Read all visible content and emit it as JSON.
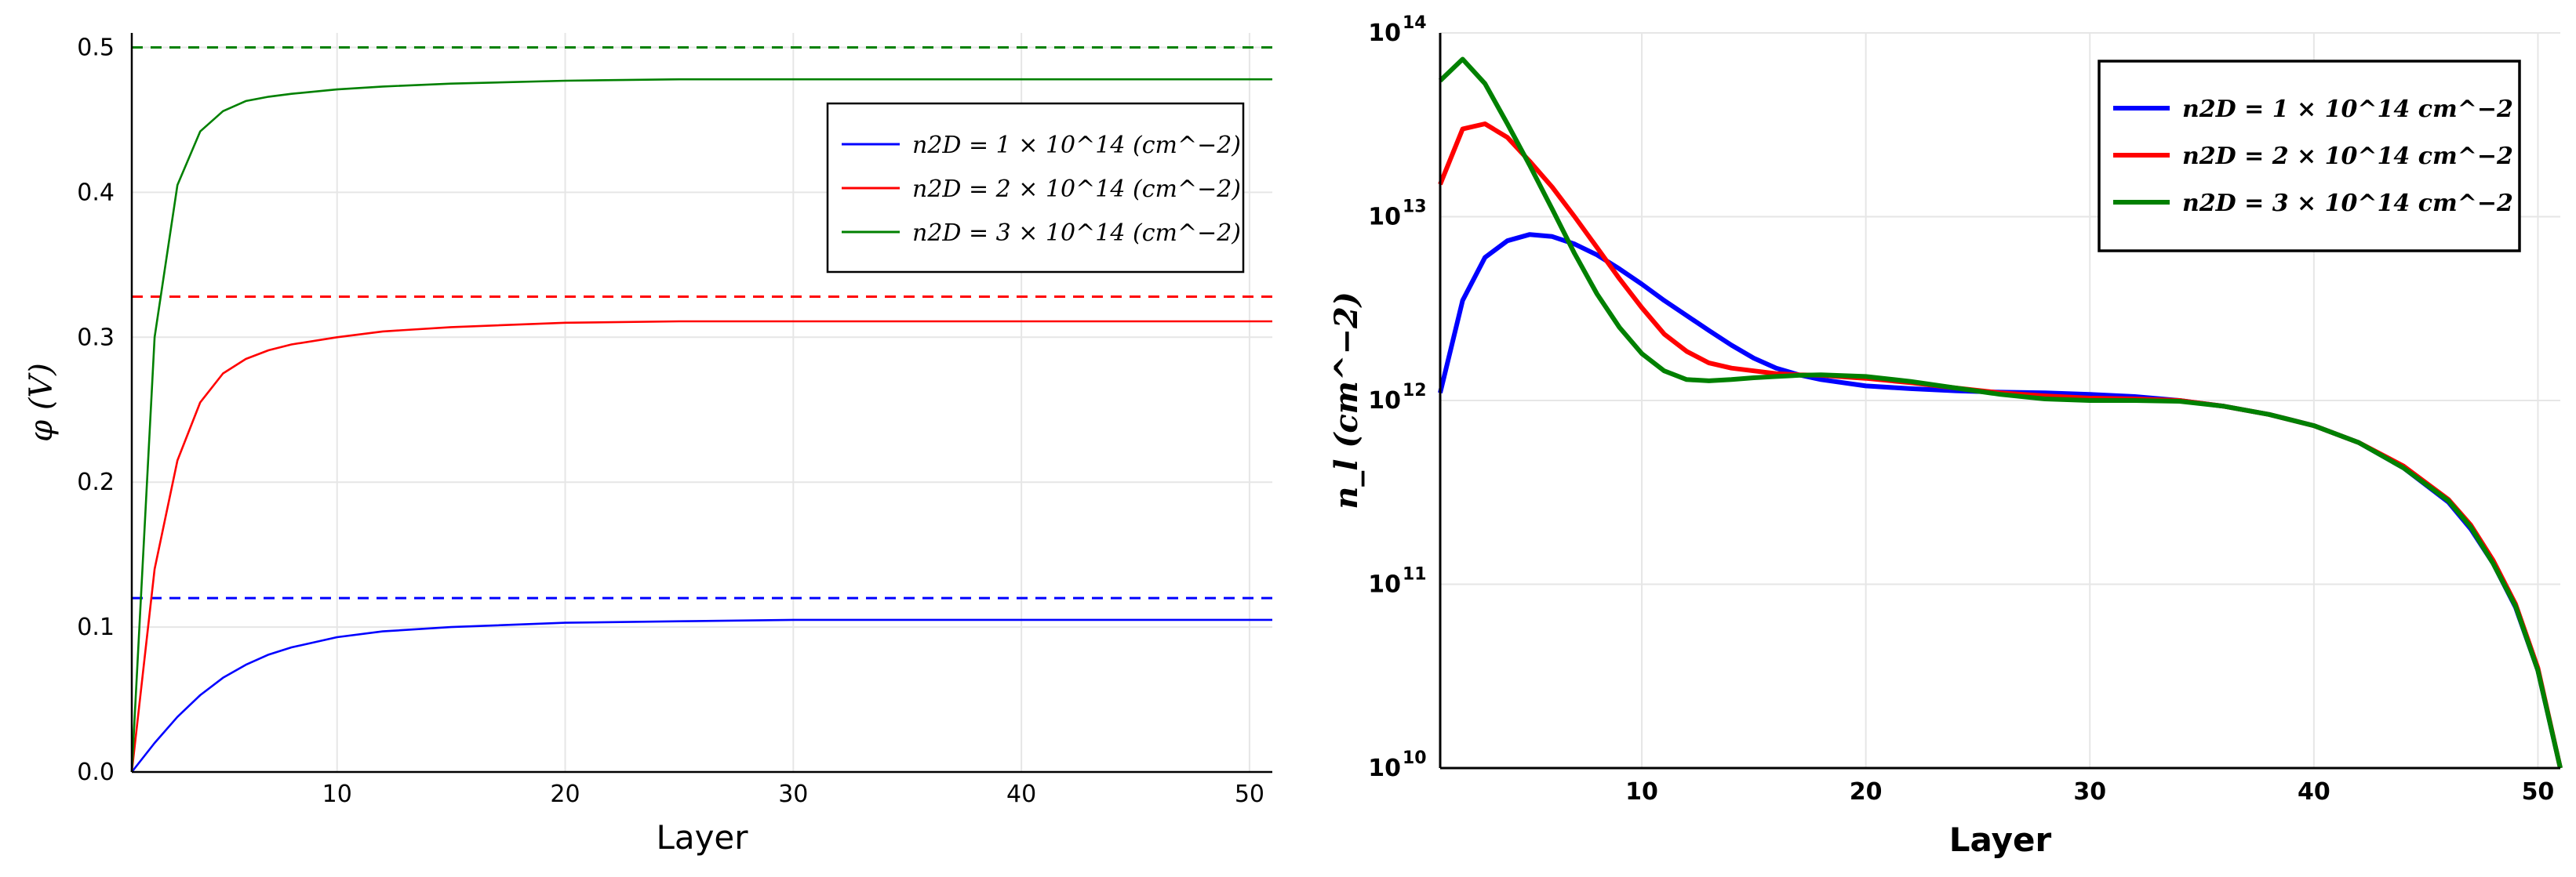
{
  "chart_data": [
    {
      "type": "line",
      "xlabel": "Layer",
      "ylabel": "φ (V)",
      "xlim": [
        1,
        51
      ],
      "ylim": [
        0,
        0.51
      ],
      "xticks": [
        10,
        20,
        30,
        40,
        50
      ],
      "yticks": [
        0.0,
        0.1,
        0.2,
        0.3,
        0.4,
        0.5
      ],
      "ytick_labels": [
        "0.0",
        "0.1",
        "0.2",
        "0.3",
        "0.4",
        "0.5"
      ],
      "grid": true,
      "legend_position": "top-right",
      "series": [
        {
          "name": "n2D = 1 × 10^14 (cm^−2)",
          "color": "#0000ff",
          "x": [
            1,
            2,
            3,
            4,
            5,
            6,
            7,
            8,
            10,
            12,
            15,
            20,
            25,
            30,
            40,
            51
          ],
          "values": [
            0.0,
            0.02,
            0.038,
            0.053,
            0.065,
            0.074,
            0.081,
            0.086,
            0.093,
            0.097,
            0.1,
            0.103,
            0.104,
            0.105,
            0.105,
            0.105
          ]
        },
        {
          "name": "n2D = 2 × 10^14 (cm^−2)",
          "color": "#ff0000",
          "x": [
            1,
            2,
            3,
            4,
            5,
            6,
            7,
            8,
            10,
            12,
            15,
            20,
            25,
            30,
            40,
            51
          ],
          "values": [
            0.0,
            0.14,
            0.215,
            0.255,
            0.275,
            0.285,
            0.291,
            0.295,
            0.3,
            0.304,
            0.307,
            0.31,
            0.311,
            0.311,
            0.311,
            0.311
          ]
        },
        {
          "name": "n2D = 3 × 10^14 (cm^−2)",
          "color": "#008000",
          "x": [
            1,
            2,
            3,
            4,
            5,
            6,
            7,
            8,
            10,
            12,
            15,
            20,
            25,
            30,
            40,
            51
          ],
          "values": [
            0.0,
            0.3,
            0.405,
            0.442,
            0.456,
            0.463,
            0.466,
            0.468,
            0.471,
            0.473,
            0.475,
            0.477,
            0.478,
            0.478,
            0.478,
            0.478
          ]
        }
      ],
      "reference_lines": [
        {
          "y": 0.12,
          "color": "#0000ff",
          "style": "dashed"
        },
        {
          "y": 0.328,
          "color": "#ff0000",
          "style": "dashed"
        },
        {
          "y": 0.5,
          "color": "#008000",
          "style": "dashed"
        }
      ]
    },
    {
      "type": "line",
      "xlabel": "Layer",
      "ylabel": "n_l (cm^−2)",
      "xlim": [
        1,
        51
      ],
      "ylim": [
        10000000000.0,
        100000000000000.0
      ],
      "yscale": "log",
      "xticks": [
        10,
        20,
        30,
        40,
        50
      ],
      "yticks": [
        10,
        11,
        12,
        13,
        14
      ],
      "ytick_bases": [
        "10",
        "10",
        "10",
        "10",
        "10"
      ],
      "ytick_exponents": [
        "10",
        "11",
        "12",
        "13",
        "14"
      ],
      "grid": true,
      "legend_position": "top-right",
      "series": [
        {
          "name": "n2D = 1 × 10^14 cm^−2",
          "color": "#0000ff",
          "x": [
            1,
            2,
            3,
            4,
            5,
            6,
            7,
            8,
            9,
            10,
            11,
            12,
            13,
            14,
            15,
            16,
            17,
            18,
            20,
            22,
            24,
            26,
            28,
            30,
            32,
            34,
            36,
            38,
            40,
            42,
            44,
            46,
            47,
            48,
            49,
            50,
            51
          ],
          "values": [
            1100000000000.0,
            3500000000000.0,
            6000000000000.0,
            7400000000000.0,
            8000000000000.0,
            7800000000000.0,
            7100000000000.0,
            6200000000000.0,
            5200000000000.0,
            4300000000000.0,
            3500000000000.0,
            2900000000000.0,
            2400000000000.0,
            2000000000000.0,
            1700000000000.0,
            1500000000000.0,
            1380000000000.0,
            1300000000000.0,
            1200000000000.0,
            1160000000000.0,
            1130000000000.0,
            1110000000000.0,
            1100000000000.0,
            1080000000000.0,
            1050000000000.0,
            1000000000000.0,
            930000000000.0,
            840000000000.0,
            730000000000.0,
            590000000000.0,
            430000000000.0,
            280000000000.0,
            200000000000.0,
            130000000000.0,
            75000000000.0,
            34000000000.0,
            10000000000.0
          ]
        },
        {
          "name": "n2D = 2 × 10^14 cm^−2",
          "color": "#ff0000",
          "x": [
            1,
            2,
            3,
            4,
            5,
            6,
            7,
            8,
            9,
            10,
            11,
            12,
            13,
            14,
            15,
            16,
            17,
            18,
            20,
            22,
            24,
            26,
            28,
            30,
            32,
            34,
            36,
            38,
            40,
            42,
            44,
            46,
            47,
            48,
            49,
            50,
            51
          ],
          "values": [
            15000000000000.0,
            30000000000000.0,
            32000000000000.0,
            27000000000000.0,
            20000000000000.0,
            14500000000000.0,
            10000000000000.0,
            6800000000000.0,
            4600000000000.0,
            3200000000000.0,
            2300000000000.0,
            1850000000000.0,
            1600000000000.0,
            1500000000000.0,
            1450000000000.0,
            1400000000000.0,
            1380000000000.0,
            1370000000000.0,
            1320000000000.0,
            1250000000000.0,
            1170000000000.0,
            1100000000000.0,
            1060000000000.0,
            1030000000000.0,
            1020000000000.0,
            1000000000000.0,
            930000000000.0,
            840000000000.0,
            730000000000.0,
            590000000000.0,
            440000000000.0,
            290000000000.0,
            210000000000.0,
            135000000000.0,
            78000000000.0,
            35000000000.0,
            10000000000.0
          ]
        },
        {
          "name": "n2D = 3 × 10^14 cm^−2",
          "color": "#008000",
          "x": [
            1,
            2,
            3,
            4,
            5,
            6,
            7,
            8,
            9,
            10,
            11,
            12,
            13,
            14,
            15,
            16,
            17,
            18,
            20,
            22,
            24,
            26,
            28,
            30,
            32,
            34,
            36,
            38,
            40,
            42,
            44,
            46,
            47,
            48,
            49,
            50,
            51
          ],
          "values": [
            55000000000000.0,
            72000000000000.0,
            53000000000000.0,
            32000000000000.0,
            19000000000000.0,
            11000000000000.0,
            6300000000000.0,
            3800000000000.0,
            2500000000000.0,
            1800000000000.0,
            1450000000000.0,
            1300000000000.0,
            1280000000000.0,
            1300000000000.0,
            1330000000000.0,
            1350000000000.0,
            1370000000000.0,
            1380000000000.0,
            1350000000000.0,
            1270000000000.0,
            1170000000000.0,
            1080000000000.0,
            1020000000000.0,
            1000000000000.0,
            1000000000000.0,
            990000000000.0,
            930000000000.0,
            840000000000.0,
            730000000000.0,
            590000000000.0,
            430000000000.0,
            285000000000.0,
            205000000000.0,
            130000000000.0,
            76000000000.0,
            34000000000.0,
            10000000000.0
          ]
        }
      ]
    }
  ]
}
